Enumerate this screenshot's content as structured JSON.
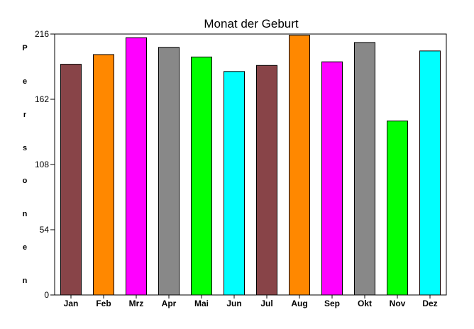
{
  "chart_data": {
    "type": "bar",
    "title": "Monat der Geburt",
    "ylabel": "Personen",
    "xlabel": "",
    "categories": [
      "Jan",
      "Feb",
      "Mrz",
      "Apr",
      "Mai",
      "Jun",
      "Jul",
      "Aug",
      "Sep",
      "Okt",
      "Nov",
      "Dez"
    ],
    "values": [
      191,
      199,
      213,
      205,
      197,
      185,
      190,
      215,
      193,
      209,
      144,
      202
    ],
    "colors": [
      "#884448",
      "#ff8800",
      "#ff00ff",
      "#888888",
      "#00ff00",
      "#00ffff",
      "#884448",
      "#ff8800",
      "#ff00ff",
      "#888888",
      "#00ff00",
      "#00ffff"
    ],
    "ylim": [
      0,
      216
    ],
    "yticks": [
      "0",
      "54",
      "108",
      "162",
      "216"
    ],
    "grid": false,
    "legend": "none"
  }
}
